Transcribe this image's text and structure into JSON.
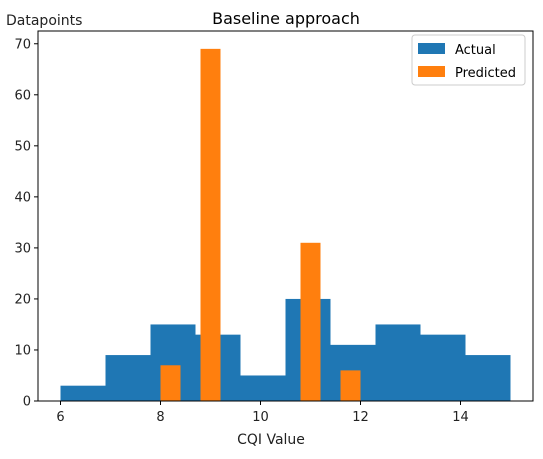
{
  "chart_data": {
    "type": "bar",
    "title": "Baseline approach",
    "xlabel": "CQI Value",
    "ylabel": "Datapoints",
    "xlim": [
      5.55,
      15.45
    ],
    "ylim": [
      0,
      72.5
    ],
    "xticks": [
      6,
      8,
      10,
      12,
      14
    ],
    "yticks": [
      0,
      10,
      20,
      30,
      40,
      50,
      60,
      70
    ],
    "grid": false,
    "legend_position": "top-right",
    "colors": {
      "actual": "#1f77b4",
      "predicted": "#ff7f0e"
    },
    "series": [
      {
        "name": "Actual",
        "bins": [
          {
            "x0": 6.0,
            "x1": 6.9,
            "value": 3
          },
          {
            "x0": 6.9,
            "x1": 7.8,
            "value": 9
          },
          {
            "x0": 7.8,
            "x1": 8.7,
            "value": 15
          },
          {
            "x0": 8.7,
            "x1": 9.6,
            "value": 13
          },
          {
            "x0": 9.6,
            "x1": 10.5,
            "value": 5
          },
          {
            "x0": 10.5,
            "x1": 11.4,
            "value": 20
          },
          {
            "x0": 11.4,
            "x1": 12.3,
            "value": 11
          },
          {
            "x0": 12.3,
            "x1": 13.2,
            "value": 15
          },
          {
            "x0": 13.2,
            "x1": 14.1,
            "value": 13
          },
          {
            "x0": 14.1,
            "x1": 15.0,
            "value": 9
          }
        ]
      },
      {
        "name": "Predicted",
        "bins": [
          {
            "x0": 8.0,
            "x1": 8.4,
            "value": 7
          },
          {
            "x0": 8.8,
            "x1": 9.2,
            "value": 69
          },
          {
            "x0": 10.8,
            "x1": 11.2,
            "value": 31
          },
          {
            "x0": 11.6,
            "x1": 12.0,
            "value": 6
          }
        ]
      }
    ]
  }
}
